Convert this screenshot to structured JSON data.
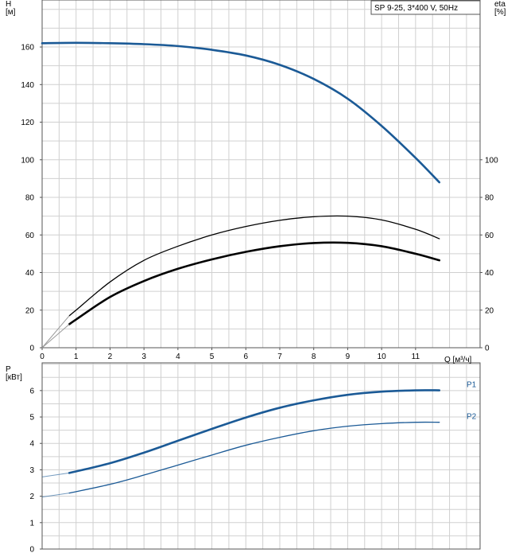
{
  "chart_data": [
    {
      "type": "line",
      "title": "SP 9-25, 3*400 V, 50Hz",
      "xlabel": "Q [м³/ч]",
      "ylabel_left": "H\n[м]",
      "ylabel_right": "eta\n[%]",
      "xlim": [
        0,
        12.9
      ],
      "ylim_left": [
        0,
        185
      ],
      "ylim_right": [
        0,
        185
      ],
      "x_ticks": [
        0,
        1,
        2,
        3,
        4,
        5,
        6,
        7,
        8,
        9,
        10,
        11
      ],
      "y_ticks_left": [
        0,
        20,
        40,
        60,
        80,
        100,
        120,
        140,
        160
      ],
      "y_ticks_right": [
        0,
        20,
        40,
        60,
        80,
        100
      ],
      "grid": true,
      "series": [
        {
          "color": "#1b5a96",
          "axis": "left",
          "x": [
            0,
            1,
            2,
            3,
            4,
            5,
            6,
            7,
            8,
            9,
            10,
            11,
            11.7
          ],
          "values": [
            162,
            162.2,
            162,
            161.5,
            160.5,
            158.5,
            155.5,
            150.5,
            143,
            132.5,
            118,
            101,
            88
          ]
        },
        {
          "color": "#000000",
          "axis": "right",
          "x": [
            0.8,
            1,
            2,
            3,
            4,
            5,
            6,
            7,
            8,
            9,
            10,
            11,
            11.7
          ],
          "values": [
            17,
            20,
            35,
            46.5,
            54,
            60,
            64.5,
            67.8,
            69.7,
            70,
            68,
            63,
            58
          ]
        },
        {
          "color": "#000000",
          "axis": "right",
          "x": [
            0.8,
            1,
            2,
            3,
            4,
            5,
            6,
            7,
            8,
            9,
            10,
            11,
            11.7
          ],
          "values": [
            12.5,
            15,
            27,
            35.5,
            42,
            47,
            51,
            54,
            55.7,
            55.8,
            54,
            50,
            46.5
          ]
        }
      ]
    },
    {
      "type": "line",
      "ylabel": "P\n[кВт]",
      "xlim": [
        0,
        12.9
      ],
      "ylim": [
        0,
        7.05
      ],
      "y_ticks": [
        0,
        1,
        2,
        3,
        4,
        5,
        6
      ],
      "grid": true,
      "series": [
        {
          "name": "P1",
          "color": "#1b5a96",
          "x": [
            0.8,
            2,
            3,
            4,
            5,
            6,
            7,
            8,
            9,
            10,
            11,
            11.7
          ],
          "values": [
            2.88,
            3.25,
            3.65,
            4.1,
            4.55,
            4.98,
            5.35,
            5.63,
            5.84,
            5.96,
            6.01,
            6.01
          ]
        },
        {
          "name": "P2",
          "color": "#1b5a96",
          "x": [
            0.8,
            2,
            3,
            4,
            5,
            6,
            7,
            8,
            9,
            10,
            11,
            11.7
          ],
          "values": [
            2.12,
            2.45,
            2.8,
            3.18,
            3.56,
            3.93,
            4.23,
            4.48,
            4.65,
            4.75,
            4.8,
            4.8
          ]
        }
      ],
      "extensions": [
        {
          "series": 0,
          "x": [
            0,
            0.8
          ],
          "values": [
            2.73,
            2.88
          ]
        },
        {
          "series": 1,
          "x": [
            0,
            0.8
          ],
          "values": [
            1.97,
            2.12
          ]
        }
      ]
    }
  ]
}
